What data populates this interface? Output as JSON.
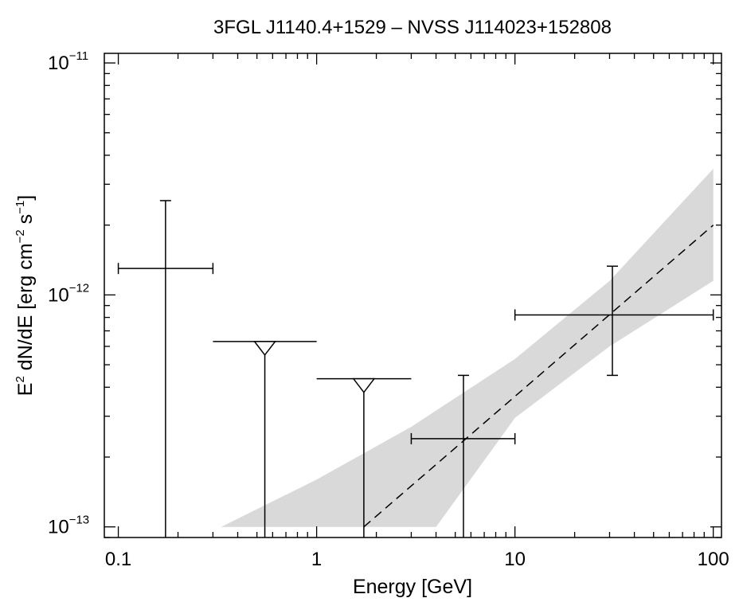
{
  "chart_data": {
    "type": "scatter",
    "title": "3FGL J1140.4+1529 – NVSS J114023+152808",
    "xlabel": "Energy [GeV]",
    "ylabel": {
      "prefix": "E",
      "exp1": "2",
      "mid": " dN/dE [erg cm",
      "exp2": "−2",
      "mid2": " s",
      "exp3": "−1",
      "suffix": "]"
    },
    "xscale": "log",
    "yscale": "log",
    "xlim": [
      0.085,
      110
    ],
    "ylim": [
      9e-14,
      1.1e-11
    ],
    "xticks": [
      {
        "value": 0.1,
        "label": "0.1"
      },
      {
        "value": 1,
        "label": "1"
      },
      {
        "value": 10,
        "label": "10"
      },
      {
        "value": 100,
        "label": "100"
      }
    ],
    "yticks": [
      {
        "value": 1e-13,
        "base": "10",
        "exp": "−13"
      },
      {
        "value": 1e-12,
        "base": "10",
        "exp": "−12"
      },
      {
        "value": 1e-11,
        "base": "10",
        "exp": "−11"
      }
    ],
    "data_points": [
      {
        "x": 0.173,
        "xerr": [
          0.1,
          0.3
        ],
        "y": 1.3e-12,
        "yerr": [
          9e-14,
          2.55e-12
        ],
        "upper_limit": false
      },
      {
        "x": 5.5,
        "xerr": [
          3.0,
          10.0
        ],
        "y": 2.4e-13,
        "yerr": [
          9e-14,
          4.5e-13
        ],
        "upper_limit": false
      },
      {
        "x": 31.0,
        "xerr": [
          10.0,
          100.0
        ],
        "y": 8.2e-13,
        "yerr": [
          4.5e-13,
          1.33e-12
        ],
        "upper_limit": false
      }
    ],
    "upper_limits": [
      {
        "x": 0.548,
        "xerr": [
          0.3,
          1.0
        ],
        "y": 6.3e-13
      },
      {
        "x": 1.73,
        "xerr": [
          1.0,
          3.0
        ],
        "y": 4.35e-13
      }
    ],
    "model": {
      "style": "dashed",
      "x": [
        1.73,
        100
      ],
      "y": [
        1e-13,
        2e-12
      ],
      "band_upper": [
        [
          0.33,
          1e-13
        ],
        [
          1.0,
          1.6e-13
        ],
        [
          3.0,
          2.7e-13
        ],
        [
          10.0,
          5.3e-13
        ],
        [
          30.0,
          1.15e-12
        ],
        [
          100.0,
          3.5e-12
        ]
      ],
      "band_lower": [
        [
          100.0,
          1.15e-12
        ],
        [
          30.0,
          6e-13
        ],
        [
          10.0,
          2.95e-13
        ],
        [
          4.0,
          1e-13
        ]
      ],
      "band_color": "#d9d9d9"
    },
    "grid": false,
    "legend": "none"
  }
}
